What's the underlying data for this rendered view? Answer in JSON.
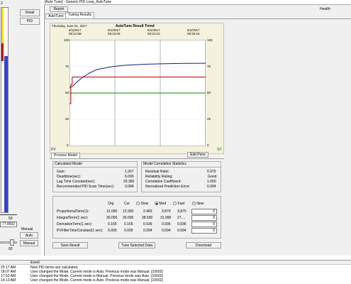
{
  "left_panel": {
    "top_label": "2",
    "detail_button": "Detail",
    "pid_button": "PID",
    "scale_bottom": "50",
    "value_readout": "77.9692",
    "mode_label": "Manual",
    "auto_button": "Auto",
    "manual_button": "Manual",
    "slider_value": "65"
  },
  "window": {
    "title": "[Auto Tune] - Generic PID Loop_AutoTune",
    "report_button": "Report",
    "health_label": "Health:",
    "tabs": [
      {
        "label": "AutoTune"
      },
      {
        "label": "Tuning Results"
      }
    ]
  },
  "trend": {
    "date_label": "Thursday, June 01, 2017",
    "title": "AutoTune Result Trend",
    "time_ticks": [
      {
        "date": "6/1/2017",
        "time": "09:21:58"
      },
      {
        "date": "6/1/2017",
        "time": "09:23:05"
      },
      {
        "date": "6/1/2017",
        "time": "09:24:10"
      },
      {
        "date": "6/1/2017",
        "time": "09:25:15"
      }
    ],
    "y_ticks_left": [
      "100",
      "75",
      "50",
      "25",
      "0"
    ],
    "y_ticks_right": [
      "100",
      "75",
      "50",
      "25",
      "0"
    ],
    "pv_label": "PV",
    "sp_label": "SP",
    "edit_pens_button": "Edit Pens"
  },
  "chart_data": {
    "type": "line",
    "title": "AutoTune Result Trend",
    "ylim": [
      0,
      100
    ],
    "x_ticks": [
      "09:21:58",
      "09:23:05",
      "09:24:10",
      "09:25:15"
    ],
    "series": [
      {
        "color": "#1a1a7a",
        "points": [
          [
            0,
            55
          ],
          [
            0.03,
            57
          ],
          [
            0.06,
            61
          ],
          [
            0.1,
            65
          ],
          [
            0.15,
            69
          ],
          [
            0.2,
            72
          ],
          [
            0.3,
            74.5
          ],
          [
            0.4,
            76
          ],
          [
            0.55,
            77
          ],
          [
            0.7,
            77.5
          ],
          [
            0.85,
            77.8
          ],
          [
            1.0,
            77.9
          ]
        ]
      },
      {
        "color": "#c00000",
        "points": [
          [
            0,
            40
          ],
          [
            0.01,
            40
          ],
          [
            0.01,
            58
          ],
          [
            0.02,
            58
          ],
          [
            0.02,
            65
          ],
          [
            1.0,
            65
          ]
        ]
      },
      {
        "color": "#009000",
        "points": [
          [
            0,
            50
          ],
          [
            1.0,
            50
          ]
        ]
      }
    ]
  },
  "process_model": {
    "tab_label": "Process Model",
    "calculated_model": {
      "title": "Calculated Model",
      "rows": [
        {
          "label": "Gain:",
          "value": "1.267"
        },
        {
          "label": "Deadtime(sec):",
          "value": "6.000"
        },
        {
          "label": "Lag Time Constant(sec):",
          "value": "29.360"
        },
        {
          "label": "Recommended PID Scan Time(sec):",
          "value": "0.084"
        }
      ]
    },
    "correlation": {
      "title": "Model Correlation Statistics",
      "rows": [
        {
          "label": "Residual Ratio:",
          "value": "0.979"
        },
        {
          "label": "Reliability Rating:",
          "value": "Good"
        },
        {
          "label": "Correlation Coefficient:",
          "value": "1.000"
        },
        {
          "label": "Normalized Prediction Error:",
          "value": "0.004"
        }
      ]
    },
    "tuning": {
      "headers": [
        "Org",
        "Cur"
      ],
      "speed_options": [
        {
          "label": "Slow",
          "selected": false
        },
        {
          "label": "Med",
          "selected": true
        },
        {
          "label": "Fast",
          "selected": false
        },
        {
          "label": "New",
          "selected": false
        }
      ],
      "rows": [
        {
          "label": "ProportionalTerm(1):",
          "org": "12.000",
          "cur": "12.000",
          "slow": "2.483",
          "med": "3.870",
          "fast": "3.870",
          "new": "0"
        },
        {
          "label": "IntegralTerm(1 sec):",
          "org": "30.000",
          "cur": "30.000",
          "slow": "38.590",
          "med": "31.990",
          "fast": "27....",
          "new": "0"
        },
        {
          "label": "DerivativeTerm(1 sec):",
          "org": "0.165",
          "cur": "0.165",
          "slow": "0.936",
          "med": "0.936",
          "fast": "0.936",
          "new": "0"
        },
        {
          "label": "PVFilterTimeConstant(1 sec):",
          "org": "0.000",
          "cur": "0.000",
          "slow": "0.094",
          "med": "0.094",
          "fast": "0.094",
          "new": "0"
        }
      ]
    },
    "save_result_button": "Save Result",
    "tune_selected_button": "Tune Selected Data",
    "download_button": "Download"
  },
  "event_log": {
    "header": "Event",
    "rows": [
      {
        "time": "25:17 AM",
        "text": "New PID terms are calculated."
      },
      {
        "time": "18:07 AM",
        "text": "User changed the Mode. Current mode is Auto. Previous mode was Manual.  [10002]"
      },
      {
        "time": "17:52 AM",
        "text": "User changed the Mode. Current mode is Manual. Previous mode was Auto.  [10002]"
      },
      {
        "time": "14:13 AM",
        "text": "User changed the Mode. Current mode is Auto. Previous mode was Manual.  [10002]"
      }
    ]
  }
}
